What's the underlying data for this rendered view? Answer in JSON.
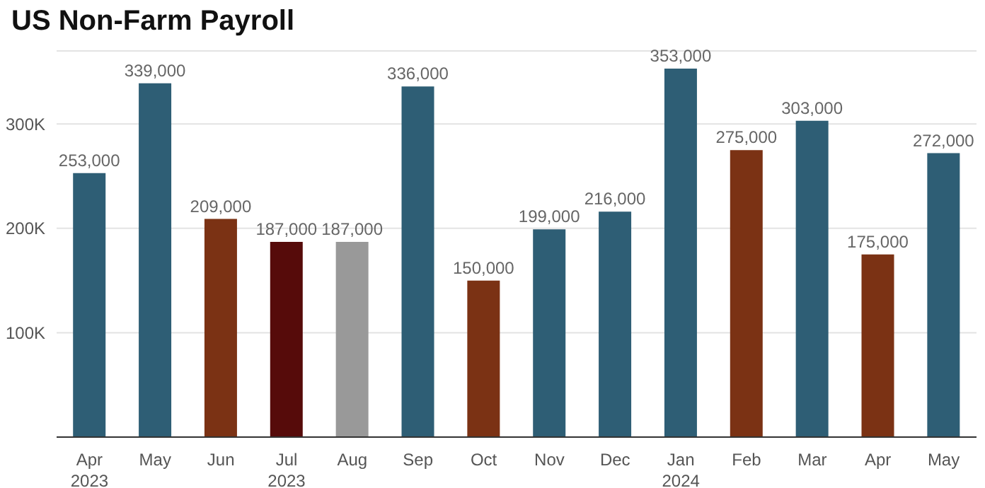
{
  "chart_data": {
    "type": "bar",
    "title": "US Non-Farm Payroll",
    "categories": [
      "Apr\n2023",
      "May",
      "Jun",
      "Jul\n2023",
      "Aug",
      "Sep",
      "Oct",
      "Nov",
      "Dec",
      "Jan\n2024",
      "Feb",
      "Mar",
      "Apr",
      "May"
    ],
    "values": [
      253000,
      339000,
      209000,
      187000,
      187000,
      336000,
      150000,
      199000,
      216000,
      353000,
      275000,
      303000,
      175000,
      272000
    ],
    "colors": [
      "#2e5e75",
      "#2e5e75",
      "#7b3214",
      "#560b0a",
      "#999999",
      "#2e5e75",
      "#7b3214",
      "#2e5e75",
      "#2e5e75",
      "#2e5e75",
      "#7b3214",
      "#2e5e75",
      "#7b3214",
      "#2e5e75"
    ],
    "value_labels": [
      "253,000",
      "339,000",
      "209,000",
      "187,000",
      "187,000",
      "336,000",
      "150,000",
      "199,000",
      "216,000",
      "353,000",
      "275,000",
      "303,000",
      "175,000",
      "272,000"
    ],
    "ylim": [
      0,
      370000
    ],
    "yticks": [
      {
        "value": 100000,
        "label": "100K"
      },
      {
        "value": 200000,
        "label": "200K"
      },
      {
        "value": 300000,
        "label": "300K"
      }
    ],
    "grid": "y"
  }
}
